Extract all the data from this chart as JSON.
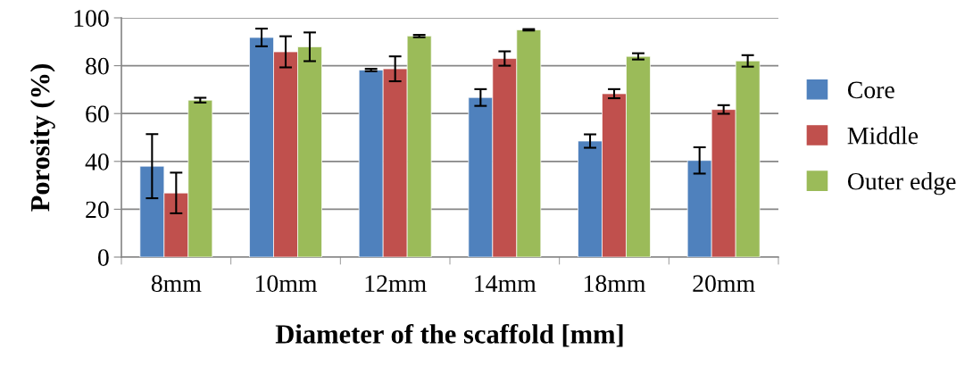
{
  "chart_data": {
    "type": "bar",
    "xlabel": "Diameter of the scaffold [mm]",
    "ylabel": "Porosity (%)",
    "categories": [
      "8mm",
      "10mm",
      "12mm",
      "14mm",
      "18mm",
      "20mm"
    ],
    "series": [
      {
        "name": "Core",
        "color": "#4f81bd",
        "values": [
          38.0,
          91.8,
          78.2,
          66.7,
          48.5,
          40.4
        ],
        "errors": [
          13.4,
          3.7,
          0.5,
          3.5,
          2.8,
          5.5
        ]
      },
      {
        "name": "Middle",
        "color": "#c0504d",
        "values": [
          26.8,
          85.8,
          78.7,
          83.0,
          68.3,
          61.7
        ],
        "errors": [
          8.5,
          6.5,
          5.2,
          3.0,
          1.9,
          1.8
        ]
      },
      {
        "name": "Outer edge",
        "color": "#9bbb59",
        "values": [
          65.6,
          87.9,
          92.4,
          95.0,
          83.9,
          82.0
        ],
        "errors": [
          1.0,
          6.0,
          0.5,
          0.3,
          1.3,
          2.4
        ]
      }
    ],
    "ylim": [
      0,
      100
    ],
    "yticks": [
      0,
      20,
      40,
      60,
      80,
      100
    ],
    "grid": "y",
    "legend": "right"
  }
}
